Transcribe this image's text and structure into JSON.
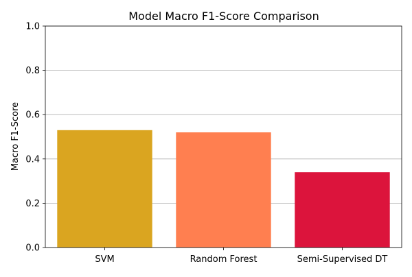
{
  "chart_data": {
    "type": "bar",
    "title": "Model Macro F1-Score Comparison",
    "xlabel": "",
    "ylabel": "Macro F1-Score",
    "categories": [
      "SVM",
      "Random Forest",
      "Semi-Supervised DT"
    ],
    "values": [
      0.53,
      0.52,
      0.34
    ],
    "colors": [
      "#DAA520",
      "#FF7F50",
      "#DC143C"
    ],
    "ylim": [
      0,
      1.0
    ],
    "yticks": [
      0.0,
      0.2,
      0.4,
      0.6,
      0.8,
      1.0
    ],
    "ytick_labels": [
      "0.0",
      "0.2",
      "0.4",
      "0.6",
      "0.8",
      "1.0"
    ],
    "grid": "y",
    "legend": "none"
  }
}
